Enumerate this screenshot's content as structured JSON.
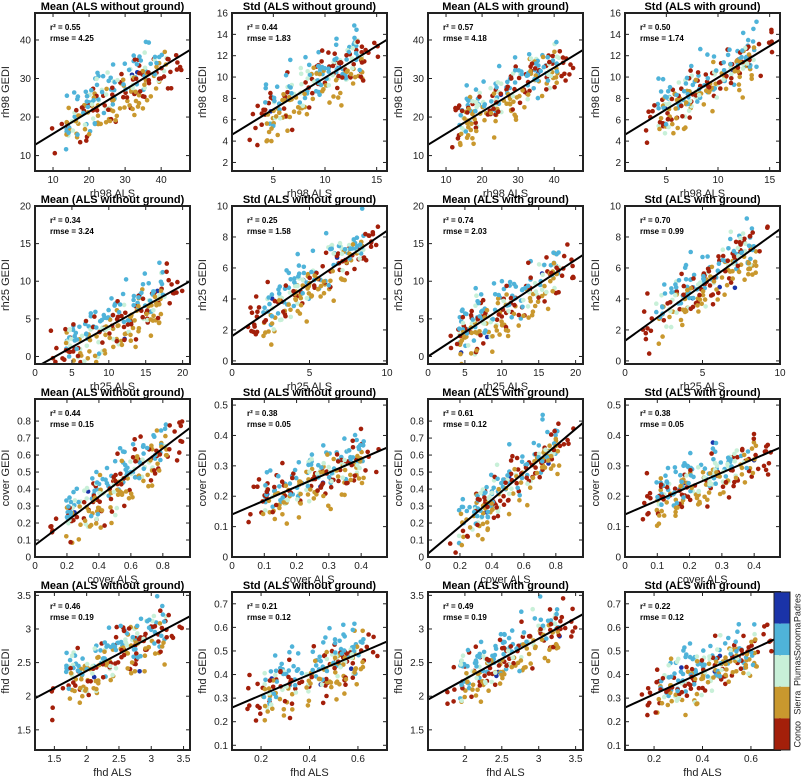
{
  "colorbar": {
    "labels": [
      "Padres",
      "Sonoma",
      "Plumas",
      "Sierra",
      "Congo"
    ],
    "colors": [
      "#1a33a8",
      "#4fb3d9",
      "#c8f0d8",
      "#c9982e",
      "#a31f0a"
    ]
  },
  "chart_data": [
    {
      "type": "scatter",
      "title": "Mean (ALS without ground)",
      "xlabel": "rh98 ALS",
      "ylabel": "rh98 GEDI",
      "xlim": [
        5,
        48
      ],
      "ylim": [
        6,
        47
      ],
      "xticks": [
        10,
        20,
        30,
        40
      ],
      "yticks": [
        10,
        20,
        30,
        40
      ],
      "stats": [
        "r² = 0.55",
        "rmse = 4.25"
      ],
      "fit": [
        [
          5,
          12.8
        ],
        [
          48,
          37.4
        ]
      ]
    },
    {
      "type": "scatter",
      "title": "Std (ALS without ground)",
      "xlabel": "rh98 ALS",
      "ylabel": "rh98 GEDI",
      "xlim": [
        1,
        16
      ],
      "ylim": [
        1.2,
        16
      ],
      "xticks": [
        5,
        10,
        15
      ],
      "yticks": [
        2,
        4,
        6,
        8,
        10,
        12,
        14,
        16
      ],
      "stats": [
        "r² = 0.44",
        "rmse = 1.83"
      ],
      "fit": [
        [
          1,
          4.6
        ],
        [
          16,
          13.5
        ]
      ]
    },
    {
      "type": "scatter",
      "title": "Mean (ALS with ground)",
      "xlabel": "rh98 ALS",
      "ylabel": "rh98 GEDI",
      "xlim": [
        5,
        48
      ],
      "ylim": [
        6,
        47
      ],
      "xticks": [
        10,
        20,
        30,
        40
      ],
      "yticks": [
        10,
        20,
        30,
        40
      ],
      "stats": [
        "r² = 0.57",
        "rmse = 4.18"
      ],
      "fit": [
        [
          5,
          12.8
        ],
        [
          48,
          37.4
        ]
      ]
    },
    {
      "type": "scatter",
      "title": "Std (ALS with ground)",
      "xlabel": "rh98 ALS",
      "ylabel": "rh98 GEDI",
      "xlim": [
        1,
        16
      ],
      "ylim": [
        1.2,
        16
      ],
      "xticks": [
        5,
        10,
        15
      ],
      "yticks": [
        2,
        4,
        6,
        8,
        10,
        12,
        14,
        16
      ],
      "stats": [
        "r² = 0.50",
        "rmse = 1.74"
      ],
      "fit": [
        [
          1,
          4.6
        ],
        [
          16,
          13.5
        ]
      ]
    },
    {
      "type": "scatter",
      "title": "Mean (ALS without ground)",
      "xlabel": "rh25 ALS",
      "ylabel": "rh25 GEDI",
      "xlim": [
        0,
        21
      ],
      "ylim": [
        -1,
        20
      ],
      "xticks": [
        0,
        5,
        10,
        15,
        20
      ],
      "yticks": [
        0,
        5,
        10,
        15,
        20
      ],
      "stats": [
        "r² = 0.34",
        "rmse = 3.24"
      ],
      "fit": [
        [
          0,
          -1.5
        ],
        [
          21,
          10
        ]
      ]
    },
    {
      "type": "scatter",
      "title": "Std (ALS without ground)",
      "xlabel": "rh25 ALS",
      "ylabel": "rh25 GEDI",
      "xlim": [
        0,
        10
      ],
      "ylim": [
        -0.2,
        10
      ],
      "xticks": [
        0,
        5,
        10
      ],
      "yticks": [
        0,
        2,
        4,
        6,
        8,
        10
      ],
      "stats": [
        "r² = 0.25",
        "rmse = 1.58"
      ],
      "fit": [
        [
          0,
          1.6
        ],
        [
          10,
          8.4
        ]
      ]
    },
    {
      "type": "scatter",
      "title": "Mean (ALS with ground)",
      "xlabel": "rh25 ALS",
      "ylabel": "rh25 GEDI",
      "xlim": [
        0,
        21
      ],
      "ylim": [
        -1,
        20
      ],
      "xticks": [
        0,
        5,
        10,
        15,
        20
      ],
      "yticks": [
        0,
        5,
        10,
        15,
        20
      ],
      "stats": [
        "r² = 0.74",
        "rmse = 2.03"
      ],
      "fit": [
        [
          0,
          0
        ],
        [
          21,
          13.5
        ]
      ]
    },
    {
      "type": "scatter",
      "title": "Std (ALS with ground)",
      "xlabel": "rh25 ALS",
      "ylabel": "rh25 GEDI",
      "xlim": [
        0,
        10
      ],
      "ylim": [
        -0.2,
        10
      ],
      "xticks": [
        0,
        5,
        10
      ],
      "yticks": [
        0,
        2,
        4,
        6,
        8,
        10
      ],
      "stats": [
        "r² = 0.70",
        "rmse = 0.99"
      ],
      "fit": [
        [
          0,
          1.3
        ],
        [
          10,
          8.5
        ]
      ]
    },
    {
      "type": "scatter",
      "title": "Mean (ALS without ground)",
      "xlabel": "cover ALS",
      "ylabel": "cover GEDI",
      "xlim": [
        0,
        0.97
      ],
      "ylim": [
        0,
        0.93
      ],
      "xticks": [
        0,
        0.2,
        0.4,
        0.6,
        0.8
      ],
      "yticks": [
        0,
        0.1,
        0.2,
        0.3,
        0.4,
        0.5,
        0.6,
        0.7,
        0.8
      ],
      "stats": [
        "r² = 0.44",
        "rmse = 0.15"
      ],
      "fit": [
        [
          0,
          0.07
        ],
        [
          0.97,
          0.76
        ]
      ]
    },
    {
      "type": "scatter",
      "title": "Std (ALS without ground)",
      "xlabel": "cover ALS",
      "ylabel": "cover GEDI",
      "xlim": [
        0,
        0.48
      ],
      "ylim": [
        0,
        0.52
      ],
      "xticks": [
        0,
        0.1,
        0.2,
        0.3,
        0.4
      ],
      "yticks": [
        0,
        0.1,
        0.2,
        0.3,
        0.4,
        0.5
      ],
      "stats": [
        "r² = 0.38",
        "rmse = 0.05"
      ],
      "fit": [
        [
          0,
          0.14
        ],
        [
          0.48,
          0.36
        ]
      ]
    },
    {
      "type": "scatter",
      "title": "Mean (ALS with ground)",
      "xlabel": "cover ALS",
      "ylabel": "cover GEDI",
      "xlim": [
        0,
        0.97
      ],
      "ylim": [
        0,
        0.93
      ],
      "xticks": [
        0,
        0.2,
        0.4,
        0.6,
        0.8
      ],
      "yticks": [
        0,
        0.1,
        0.2,
        0.3,
        0.4,
        0.5,
        0.6,
        0.7,
        0.8
      ],
      "stats": [
        "r² = 0.61",
        "rmse = 0.12"
      ],
      "fit": [
        [
          0,
          0.02
        ],
        [
          0.97,
          0.79
        ]
      ]
    },
    {
      "type": "scatter",
      "title": "Std (ALS with ground)",
      "xlabel": "cover ALS",
      "ylabel": "cover GEDI",
      "xlim": [
        0,
        0.48
      ],
      "ylim": [
        0,
        0.52
      ],
      "xticks": [
        0,
        0.1,
        0.2,
        0.3,
        0.4
      ],
      "yticks": [
        0,
        0.1,
        0.2,
        0.3,
        0.4,
        0.5
      ],
      "stats": [
        "r² = 0.38",
        "rmse = 0.05"
      ],
      "fit": [
        [
          0,
          0.14
        ],
        [
          0.48,
          0.36
        ]
      ]
    },
    {
      "type": "scatter",
      "title": "Mean (ALS without ground)",
      "xlabel": "fhd ALS",
      "ylabel": "fhd GEDI",
      "xlim": [
        1.2,
        3.6
      ],
      "ylim": [
        1.2,
        3.55
      ],
      "xticks": [
        1.5,
        2,
        2.5,
        3,
        3.5
      ],
      "yticks": [
        1.5,
        2,
        2.5,
        3,
        3.5
      ],
      "stats": [
        "r² = 0.46",
        "rmse = 0.19"
      ],
      "fit": [
        [
          1.2,
          1.97
        ],
        [
          3.6,
          3.19
        ]
      ]
    },
    {
      "type": "scatter",
      "title": "Std (ALS without ground)",
      "xlabel": "fhd ALS",
      "ylabel": "fhd GEDI",
      "xlim": [
        0.08,
        0.72
      ],
      "ylim": [
        0.08,
        0.75
      ],
      "xticks": [
        0.2,
        0.4,
        0.6
      ],
      "yticks": [
        0.1,
        0.2,
        0.3,
        0.4,
        0.5,
        0.6,
        0.7
      ],
      "stats": [
        "r² = 0.21",
        "rmse = 0.12"
      ],
      "fit": [
        [
          0.08,
          0.26
        ],
        [
          0.72,
          0.54
        ]
      ]
    },
    {
      "type": "scatter",
      "title": "Mean (ALS with ground)",
      "xlabel": "fhd ALS",
      "ylabel": "fhd GEDI",
      "xlim": [
        1.5,
        3.6
      ],
      "ylim": [
        1.2,
        3.55
      ],
      "xticks": [
        2,
        2.5,
        3,
        3.5
      ],
      "yticks": [
        1.5,
        2,
        2.5,
        3,
        3.5
      ],
      "stats": [
        "r² = 0.49",
        "rmse = 0.19"
      ],
      "fit": [
        [
          1.5,
          1.95
        ],
        [
          3.6,
          3.22
        ]
      ]
    },
    {
      "type": "scatter",
      "title": "Std (ALS with ground)",
      "xlabel": "fhd ALS",
      "ylabel": "fhd GEDI",
      "xlim": [
        0.08,
        0.72
      ],
      "ylim": [
        0.08,
        0.75
      ],
      "xticks": [
        0.2,
        0.4,
        0.6
      ],
      "yticks": [
        0.1,
        0.2,
        0.3,
        0.4,
        0.5,
        0.6,
        0.7
      ],
      "stats": [
        "r² = 0.22",
        "rmse = 0.12"
      ],
      "fit": [
        [
          0.08,
          0.26
        ],
        [
          0.72,
          0.56
        ]
      ]
    }
  ]
}
